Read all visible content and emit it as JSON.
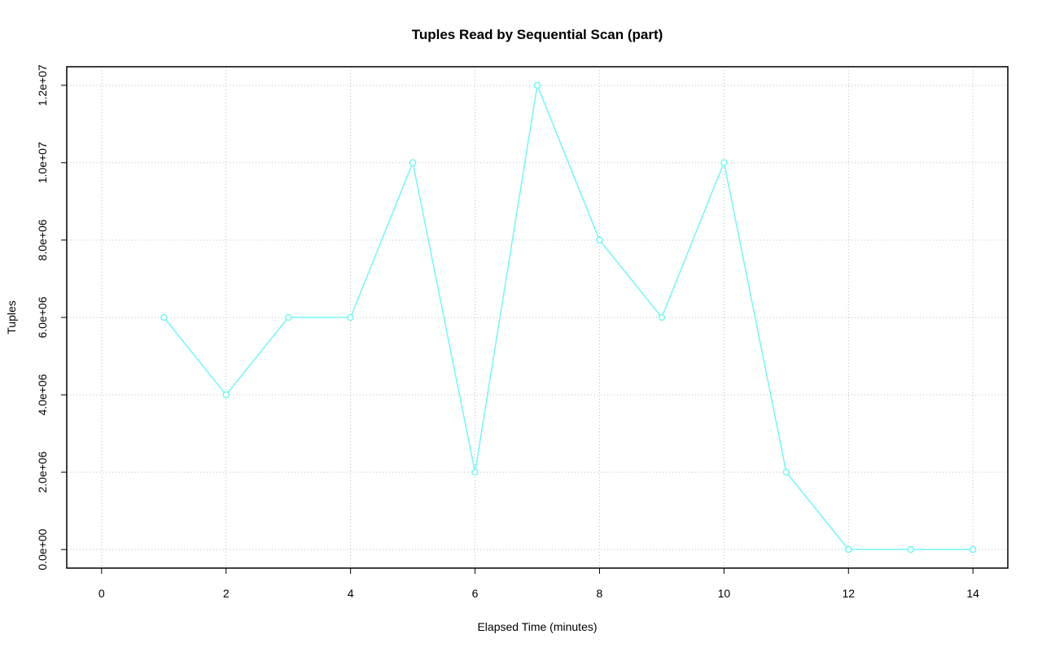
{
  "chart_data": {
    "type": "line",
    "title": "Tuples Read by Sequential Scan (part)",
    "x_label": "Elapsed Time (minutes)",
    "y_label": "Tuples",
    "x": [
      1,
      2,
      3,
      4,
      5,
      6,
      7,
      8,
      9,
      10,
      11,
      12,
      13,
      14
    ],
    "series": [
      {
        "name": "Tuples",
        "color": "#73f7f7",
        "values": [
          6000000,
          4000000,
          6000000,
          6000000,
          10000000,
          2000000,
          12000000,
          8000000,
          6000000,
          10000000,
          2000000,
          0,
          0,
          0
        ]
      }
    ],
    "xlim": [
      -0.56,
      14.56
    ],
    "ylim": [
      -480000,
      12480000
    ],
    "xticks": [
      0,
      2,
      4,
      6,
      8,
      10,
      12,
      14
    ],
    "yticks": [
      {
        "value": 0,
        "label": "0.0e+00"
      },
      {
        "value": 2000000,
        "label": "2.0e+06"
      },
      {
        "value": 4000000,
        "label": "4.0e+06"
      },
      {
        "value": 6000000,
        "label": "6.0e+06"
      },
      {
        "value": 8000000,
        "label": "8.0e+06"
      },
      {
        "value": 10000000,
        "label": "1.0e+07"
      },
      {
        "value": 12000000,
        "label": "1.2e+07"
      }
    ],
    "grid": true
  }
}
